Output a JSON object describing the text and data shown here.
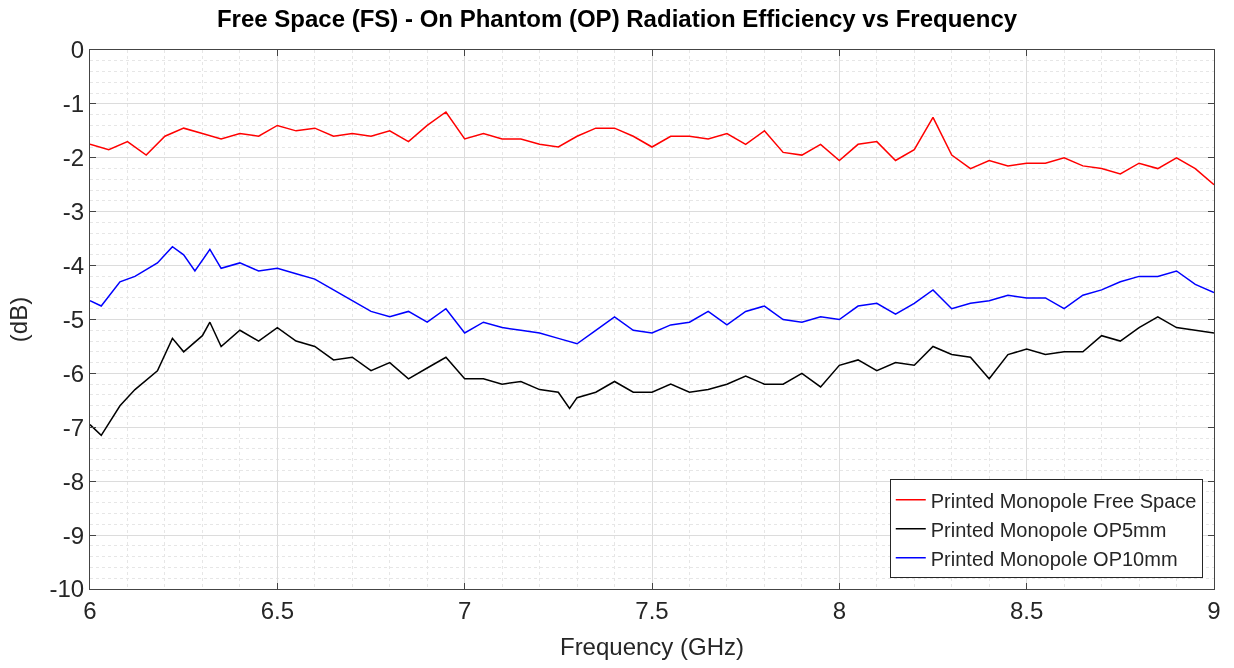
{
  "chart_data": {
    "type": "line",
    "title": "Free Space (FS) - On Phantom (OP) Radiation Efficiency vs Frequency",
    "xlabel": "Frequency (GHz)",
    "ylabel": "(dB)",
    "x": [
      6.0,
      6.05,
      6.1,
      6.15,
      6.2,
      6.25,
      6.3,
      6.35,
      6.4,
      6.45,
      6.5,
      6.55,
      6.6,
      6.65,
      6.7,
      6.75,
      6.8,
      6.85,
      6.9,
      6.95,
      7.0,
      7.05,
      7.1,
      7.15,
      7.2,
      7.25,
      7.3,
      7.35,
      7.4,
      7.45,
      7.5,
      7.55,
      7.6,
      7.65,
      7.7,
      7.75,
      7.8,
      7.85,
      7.9,
      7.95,
      8.0,
      8.05,
      8.1,
      8.15,
      8.2,
      8.25,
      8.3,
      8.35,
      8.4,
      8.45,
      8.5,
      8.55,
      8.6,
      8.65,
      8.7,
      8.75,
      8.8,
      8.85,
      8.9,
      8.95,
      9.0
    ],
    "series": [
      {
        "name": "Printed Monopole Free Space",
        "color": "#ff0000",
        "values": [
          -1.75,
          -1.85,
          -1.7,
          -1.95,
          -1.6,
          -1.45,
          -1.55,
          -1.65,
          -1.55,
          -1.6,
          -1.4,
          -1.5,
          -1.45,
          -1.6,
          -1.55,
          -1.6,
          -1.5,
          -1.7,
          -1.4,
          -1.15,
          -1.65,
          -1.55,
          -1.65,
          -1.65,
          -1.75,
          -1.8,
          -1.6,
          -1.45,
          -1.45,
          -1.6,
          -1.8,
          -1.6,
          -1.6,
          -1.65,
          -1.55,
          -1.75,
          -1.5,
          -1.9,
          -1.95,
          -1.75,
          -2.05,
          -1.75,
          -1.7,
          -2.05,
          -1.85,
          -1.25,
          -1.95,
          -2.2,
          -2.05,
          -2.15,
          -2.1,
          -2.1,
          -2.0,
          -2.15,
          -2.2,
          -2.3,
          -2.1,
          -2.2,
          -2.0,
          -2.2,
          -2.5
        ]
      },
      {
        "name": "Printed Monopole OP5mm",
        "color": "#000000",
        "x": [
          6.0,
          6.03,
          6.08,
          6.12,
          6.18,
          6.22,
          6.25,
          6.3,
          6.32,
          6.35,
          6.4,
          6.45,
          6.5,
          6.55,
          6.6,
          6.65,
          6.7,
          6.75,
          6.8,
          6.85,
          6.9,
          6.95,
          7.0,
          7.05,
          7.1,
          7.15,
          7.2,
          7.25,
          7.28,
          7.3,
          7.35,
          7.4,
          7.45,
          7.5,
          7.55,
          7.6,
          7.65,
          7.7,
          7.75,
          7.8,
          7.85,
          7.9,
          7.95,
          8.0,
          8.05,
          8.1,
          8.15,
          8.2,
          8.25,
          8.3,
          8.35,
          8.4,
          8.45,
          8.5,
          8.55,
          8.6,
          8.65,
          8.7,
          8.75,
          8.8,
          8.85,
          8.9,
          8.95,
          9.0
        ],
        "values": [
          -6.95,
          -7.15,
          -6.6,
          -6.3,
          -5.95,
          -5.35,
          -5.6,
          -5.3,
          -5.05,
          -5.5,
          -5.2,
          -5.4,
          -5.15,
          -5.4,
          -5.5,
          -5.75,
          -5.7,
          -5.95,
          -5.8,
          -6.1,
          -5.9,
          -5.7,
          -6.1,
          -6.1,
          -6.2,
          -6.15,
          -6.3,
          -6.35,
          -6.65,
          -6.45,
          -6.35,
          -6.15,
          -6.35,
          -6.35,
          -6.2,
          -6.35,
          -6.3,
          -6.2,
          -6.05,
          -6.2,
          -6.2,
          -6.0,
          -6.25,
          -5.85,
          -5.75,
          -5.95,
          -5.8,
          -5.85,
          -5.5,
          -5.65,
          -5.7,
          -6.1,
          -5.65,
          -5.55,
          -5.65,
          -5.6,
          -5.6,
          -5.3,
          -5.4,
          -5.15,
          -4.95,
          -5.15,
          -5.2,
          -5.25
        ]
      },
      {
        "name": "Printed Monopole OP10mm",
        "color": "#0000ff",
        "x": [
          6.0,
          6.03,
          6.08,
          6.12,
          6.18,
          6.22,
          6.25,
          6.28,
          6.32,
          6.35,
          6.4,
          6.45,
          6.5,
          6.55,
          6.6,
          6.65,
          6.7,
          6.75,
          6.8,
          6.85,
          6.9,
          6.95,
          7.0,
          7.05,
          7.1,
          7.15,
          7.2,
          7.25,
          7.3,
          7.35,
          7.4,
          7.45,
          7.5,
          7.55,
          7.6,
          7.65,
          7.7,
          7.75,
          7.8,
          7.85,
          7.9,
          7.95,
          8.0,
          8.05,
          8.1,
          8.15,
          8.2,
          8.25,
          8.3,
          8.35,
          8.4,
          8.45,
          8.5,
          8.55,
          8.6,
          8.65,
          8.7,
          8.75,
          8.8,
          8.85,
          8.9,
          8.95,
          9.0
        ],
        "values": [
          -4.65,
          -4.75,
          -4.3,
          -4.2,
          -3.95,
          -3.65,
          -3.8,
          -4.1,
          -3.7,
          -4.05,
          -3.95,
          -4.1,
          -4.05,
          -4.15,
          -4.25,
          -4.45,
          -4.65,
          -4.85,
          -4.95,
          -4.85,
          -5.05,
          -4.8,
          -5.25,
          -5.05,
          -5.15,
          -5.2,
          -5.25,
          -5.35,
          -5.45,
          -5.2,
          -4.95,
          -5.2,
          -5.25,
          -5.1,
          -5.05,
          -4.85,
          -5.1,
          -4.85,
          -4.75,
          -5.0,
          -5.05,
          -4.95,
          -5.0,
          -4.75,
          -4.7,
          -4.9,
          -4.7,
          -4.45,
          -4.8,
          -4.7,
          -4.65,
          -4.55,
          -4.6,
          -4.6,
          -4.8,
          -4.55,
          -4.45,
          -4.3,
          -4.2,
          -4.2,
          -4.1,
          -4.35,
          -4.5
        ]
      }
    ],
    "xlim": [
      6,
      9
    ],
    "xticks": [
      6,
      6.5,
      7,
      7.5,
      8,
      8.5,
      9
    ],
    "ylim": [
      -10,
      0
    ],
    "yticks": [
      -10,
      -9,
      -8,
      -7,
      -6,
      -5,
      -4,
      -3,
      -2,
      -1,
      0
    ],
    "grid": true,
    "legend": "bottom right",
    "marker": "none",
    "line_style": "solid"
  }
}
